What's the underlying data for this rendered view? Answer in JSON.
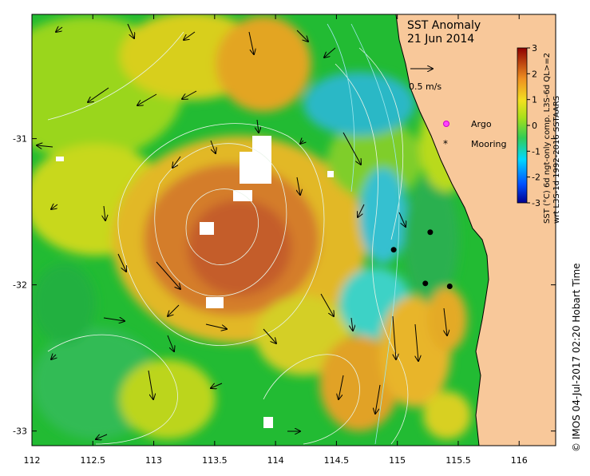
{
  "map": {
    "title_line1": "SST Anomaly",
    "title_line2": "21 Jun 2014",
    "velocity_scale_label": "0.5 m/s",
    "legend": {
      "argo_label": "Argo",
      "mooring_label": "Mooring"
    },
    "colorbar": {
      "ticks": [
        "3",
        "2",
        "1",
        "0",
        "-1",
        "-2",
        "-3"
      ],
      "label_line1": "SST (°C) 6d ngt-only comp. L3S-6d QL>=2",
      "label_line2": "wrt L3S-1d 1992-2016 SSTAARS"
    },
    "credit": "© IMOS 04-Jul-2017 02:20 Hobart Time",
    "x_ticks": [
      "112",
      "112.5",
      "113",
      "113.5",
      "114",
      "114.5",
      "115",
      "115.5",
      "116"
    ],
    "y_ticks": [
      "-31",
      "-32",
      "-33"
    ],
    "colors": {
      "land": "#f8c89a",
      "mooring": "#000000",
      "argo": "#ff44ff"
    },
    "moorings": [
      {
        "lon": 115.27,
        "lat": -31.64
      },
      {
        "lon": 114.97,
        "lat": -31.76
      },
      {
        "lon": 115.23,
        "lat": -31.99
      },
      {
        "lon": 115.43,
        "lat": -32.01
      }
    ]
  }
}
